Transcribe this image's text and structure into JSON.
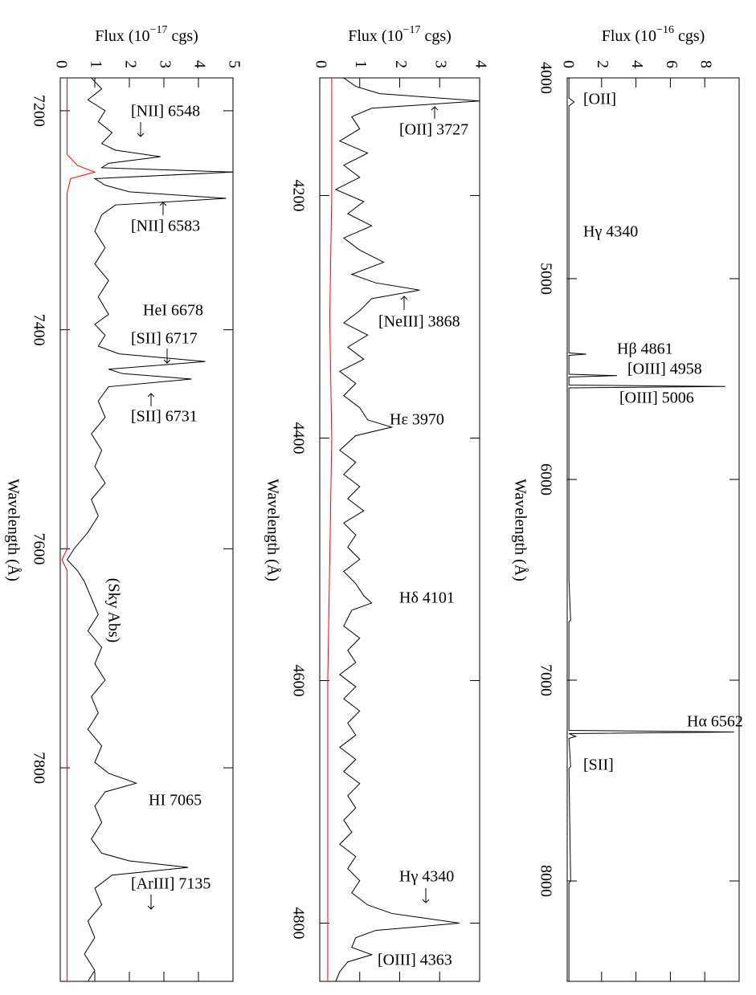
{
  "chart_data": [
    {
      "type": "line",
      "xlabel": "Wavelength (Å)",
      "ylabel_parts": [
        "Flux (10",
        "−17",
        " cgs)"
      ],
      "xlim": [
        7170,
        7995
      ],
      "xticks": [
        7200,
        7400,
        7600,
        7800
      ],
      "ylim": [
        0,
        5
      ],
      "yticks": [
        0,
        1,
        2,
        3,
        4,
        5
      ],
      "annotations": [
        "[NII] 6548",
        "[NII] 6583",
        "HeI 6678",
        "[SII] 6717",
        "[SII] 6731",
        "(Sky Abs)",
        "HI 7065",
        "[ArIII] 7135"
      ],
      "series": [
        {
          "color": "#000000",
          "x": [
            7170,
            7180,
            7190,
            7200,
            7210,
            7220,
            7230,
            7236,
            7242,
            7248,
            7252,
            7256,
            7262,
            7268,
            7274,
            7280,
            7286,
            7295,
            7310,
            7325,
            7340,
            7355,
            7370,
            7386,
            7395,
            7405,
            7415,
            7422,
            7429,
            7436,
            7440,
            7445,
            7452,
            7465,
            7480,
            7495,
            7510,
            7525,
            7540,
            7555,
            7570,
            7585,
            7600,
            7610,
            7620,
            7630,
            7645,
            7660,
            7675,
            7690,
            7705,
            7720,
            7735,
            7750,
            7765,
            7780,
            7795,
            7805,
            7814,
            7822,
            7835,
            7850,
            7865,
            7878,
            7885,
            7891,
            7898,
            7910,
            7925,
            7940,
            7955,
            7970,
            7985,
            7995
          ],
          "values": [
            0.9,
            1.2,
            0.8,
            1.3,
            1.1,
            1.5,
            1.2,
            1.6,
            2.9,
            1.4,
            1.2,
            5.0,
            1.0,
            1.3,
            2.0,
            4.8,
            1.6,
            1.2,
            1.0,
            1.3,
            1.0,
            1.4,
            1.1,
            1.4,
            1.0,
            1.3,
            1.1,
            1.7,
            4.2,
            1.4,
            1.8,
            3.8,
            1.4,
            1.1,
            1.3,
            0.9,
            1.2,
            1.0,
            1.3,
            0.9,
            1.1,
            0.8,
            0.4,
            0.2,
            0.5,
            0.7,
            0.9,
            1.1,
            0.8,
            1.2,
            1.0,
            1.3,
            0.9,
            1.1,
            0.8,
            1.2,
            1.0,
            1.4,
            2.2,
            1.3,
            1.0,
            1.2,
            0.9,
            1.2,
            2.0,
            3.7,
            1.5,
            1.0,
            1.2,
            0.8,
            1.0,
            0.7,
            1.0,
            0.8
          ]
        },
        {
          "color": "#ff0000",
          "x": [
            7170,
            7240,
            7250,
            7256,
            7262,
            7275,
            7600,
            7610,
            7620,
            7995
          ],
          "values": [
            0.2,
            0.2,
            0.5,
            1.0,
            0.3,
            0.2,
            0.2,
            0.05,
            0.2,
            0.2
          ]
        }
      ]
    },
    {
      "type": "line",
      "xlabel": "Wavelength (Å)",
      "ylabel_parts": [
        "Flux (10",
        "−17",
        " cgs)"
      ],
      "xlim": [
        4103,
        4848
      ],
      "xticks": [
        4200,
        4400,
        4600,
        4800
      ],
      "ylim": [
        0,
        4
      ],
      "yticks": [
        0,
        1,
        2,
        3,
        4
      ],
      "annotations": [
        "[OII] 3727",
        "[NeIII] 3868",
        "Hε 3970",
        "Hδ 4101",
        "Hγ 4340",
        "[OIII] 4363"
      ],
      "series": [
        {
          "color": "#000000",
          "x": [
            4103,
            4110,
            4116,
            4122,
            4128,
            4135,
            4145,
            4155,
            4165,
            4175,
            4185,
            4195,
            4205,
            4215,
            4225,
            4235,
            4245,
            4255,
            4265,
            4272,
            4278,
            4285,
            4295,
            4305,
            4315,
            4325,
            4335,
            4345,
            4355,
            4365,
            4375,
            4385,
            4391,
            4398,
            4410,
            4420,
            4430,
            4440,
            4450,
            4460,
            4470,
            4480,
            4490,
            4500,
            4510,
            4520,
            4530,
            4536,
            4542,
            4555,
            4565,
            4575,
            4585,
            4595,
            4605,
            4615,
            4625,
            4635,
            4645,
            4655,
            4665,
            4675,
            4685,
            4695,
            4705,
            4715,
            4725,
            4735,
            4745,
            4755,
            4765,
            4775,
            4785,
            4792,
            4800,
            4806,
            4812,
            4820,
            4826,
            4832,
            4840,
            4848
          ],
          "values": [
            0.6,
            0.9,
            1.5,
            4.0,
            1.3,
            0.8,
            1.0,
            0.5,
            1.2,
            0.6,
            1.0,
            0.4,
            1.1,
            0.7,
            1.3,
            0.6,
            1.0,
            1.6,
            0.8,
            1.4,
            2.5,
            1.3,
            1.0,
            0.6,
            1.2,
            0.7,
            1.1,
            0.5,
            0.9,
            0.6,
            1.0,
            1.2,
            1.8,
            0.9,
            0.5,
            0.9,
            0.6,
            1.0,
            0.7,
            1.1,
            0.6,
            0.9,
            0.7,
            1.0,
            0.6,
            0.9,
            1.1,
            1.3,
            0.8,
            0.6,
            1.0,
            0.7,
            0.9,
            0.5,
            0.9,
            0.6,
            1.0,
            0.7,
            0.9,
            0.5,
            0.9,
            0.6,
            1.0,
            0.7,
            0.9,
            0.6,
            0.8,
            0.5,
            0.9,
            0.7,
            1.0,
            0.8,
            1.2,
            1.8,
            3.5,
            1.4,
            0.9,
            0.8,
            1.3,
            0.7,
            0.5,
            0.4
          ]
        },
        {
          "color": "#ff0000",
          "x": [
            4103,
            4200,
            4300,
            4400,
            4500,
            4600,
            4700,
            4848
          ],
          "values": [
            0.3,
            0.3,
            0.25,
            0.3,
            0.25,
            0.2,
            0.2,
            0.2
          ]
        }
      ]
    },
    {
      "type": "line",
      "xlabel": "Wavelength (Å)",
      "ylabel_parts": [
        "Flux (10",
        "−16",
        " cgs)"
      ],
      "xlim": [
        4000,
        8500
      ],
      "xticks": [
        4000,
        5000,
        6000,
        7000,
        8000
      ],
      "ylim": [
        0,
        10
      ],
      "yticks": [
        0,
        2,
        4,
        6,
        8
      ],
      "annotations": [
        "[OII]",
        "Hγ 4340",
        "Hβ 4861",
        "[OIII] 4958",
        "[OIII] 5006",
        "Hα 6562",
        "[SII]"
      ],
      "series": [
        {
          "color": "#000000",
          "x": [
            4000,
            4100,
            4120,
            4140,
            4800,
            5370,
            5376,
            5382,
            5476,
            5483,
            5490,
            5530,
            5537,
            5544,
            6500,
            6700,
            6710,
            7250,
            7258,
            7266,
            7280,
            7290,
            7430,
            7440,
            8000,
            8010,
            8500
          ],
          "values": [
            0.1,
            0.1,
            0.4,
            0.1,
            0.1,
            0.1,
            1.1,
            0.1,
            0.1,
            2.9,
            0.1,
            0.1,
            9.2,
            0.1,
            0.1,
            0.2,
            0.1,
            0.1,
            9.7,
            0.1,
            0.5,
            0.1,
            0.2,
            0.1,
            0.2,
            0.1,
            0.1
          ]
        }
      ]
    }
  ]
}
